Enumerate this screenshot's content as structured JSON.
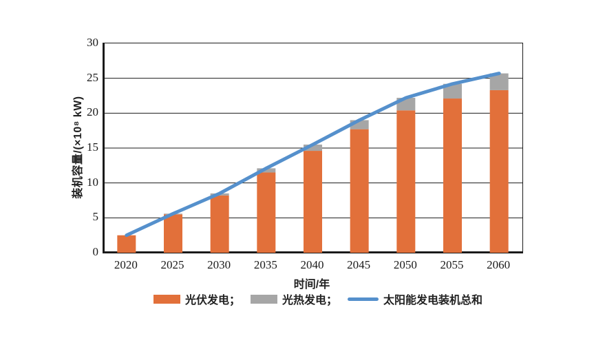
{
  "chart_data": {
    "type": "bar",
    "subtype": "stacked-bars-with-line-overlay",
    "title": "",
    "categories": [
      "2020",
      "2025",
      "2030",
      "2035",
      "2040",
      "2045",
      "2050",
      "2055",
      "2060"
    ],
    "series": [
      {
        "name": "光伏发电",
        "type": "bar",
        "stack": "capacity",
        "color": "#E2703A",
        "values": [
          2.5,
          5.5,
          8.2,
          11.5,
          14.6,
          17.7,
          20.4,
          22.1,
          23.3
        ]
      },
      {
        "name": "光热发电",
        "type": "bar",
        "stack": "capacity",
        "color": "#A6A6A6",
        "values": [
          0,
          0.1,
          0.3,
          0.6,
          0.9,
          1.3,
          1.8,
          2.1,
          2.4
        ]
      },
      {
        "name": "太阳能发电装机总和",
        "type": "line",
        "color": "#5590CC",
        "values": [
          2.5,
          5.6,
          8.5,
          12.1,
          15.5,
          19.0,
          22.2,
          24.2,
          25.7
        ]
      }
    ],
    "xlabel": "时间/年",
    "ylabel": "装机容量/(×10⁸ kW)",
    "ylim": [
      0,
      30
    ],
    "ytick_step": 5,
    "grid": true,
    "gridline_color": "#1a1a1a",
    "axis_color": "#1a1a1a",
    "legend_position": "bottom",
    "legend": [
      {
        "label": "光伏发电；",
        "swatch": "bar",
        "color": "#E2703A"
      },
      {
        "label": "光热发电；",
        "swatch": "bar",
        "color": "#A6A6A6"
      },
      {
        "label": "太阳能发电装机总和",
        "swatch": "line",
        "color": "#5590CC"
      }
    ]
  }
}
